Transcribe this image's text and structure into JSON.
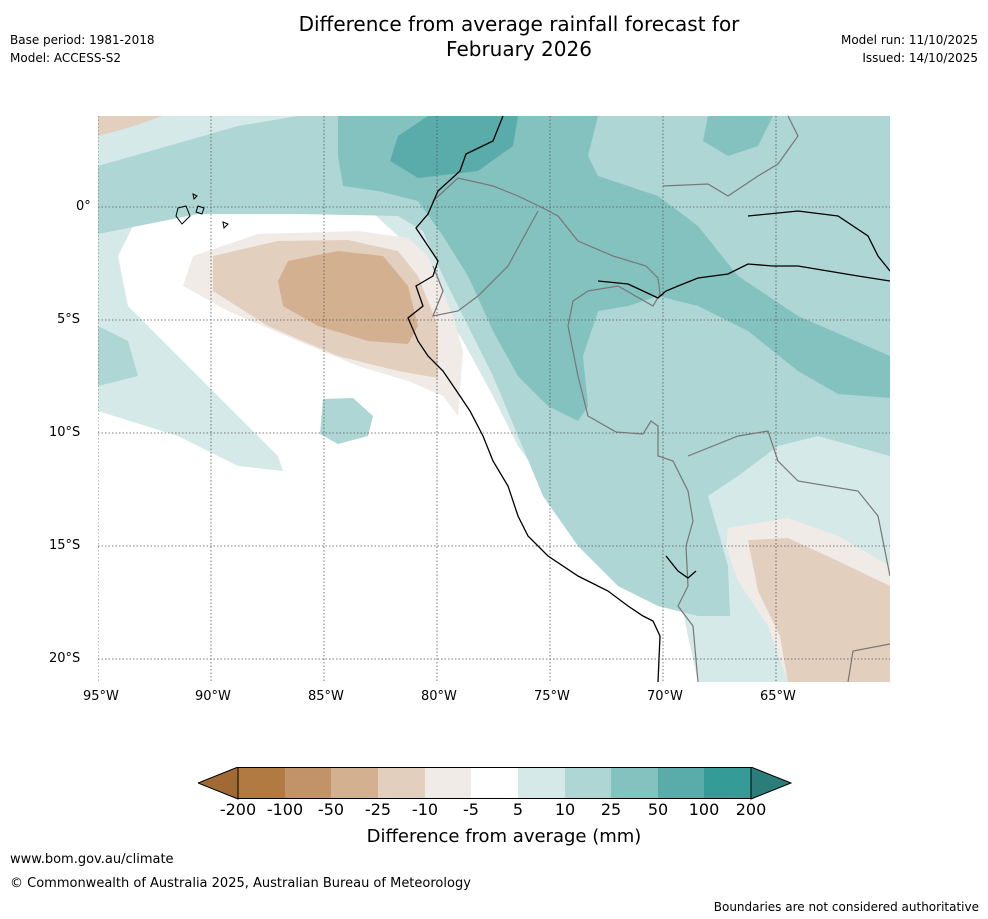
{
  "header": {
    "title_line1": "Difference from average rainfall forecast for",
    "title_line2": "February 2026",
    "base_period": "Base period: 1981-2018",
    "model": "Model: ACCESS-S2",
    "model_run": "Model run: 11/10/2025",
    "issued": "Issued: 14/10/2025"
  },
  "map": {
    "lon_labels": [
      "95°W",
      "90°W",
      "85°W",
      "80°W",
      "75°W",
      "70°W",
      "65°W"
    ],
    "lat_labels": [
      "0°",
      "5°S",
      "10°S",
      "15°S",
      "20°S"
    ],
    "colors": {
      "minus200": "#a16a34",
      "minus100": "#b07a42",
      "minus50": "#c29369",
      "minus25": "#d3b090",
      "minus10": "#e3cfbe",
      "minus5": "#f0ebe6",
      "zero": "#ffffff",
      "plus5": "#d5e9e8",
      "plus10": "#add6d5",
      "plus25": "#84c2c0",
      "plus50": "#5aacab",
      "plus100": "#349b97",
      "plus200": "#2a7d79"
    }
  },
  "legend": {
    "labels": [
      "-200",
      "-100",
      "-50",
      "-25",
      "-10",
      "-5",
      "5",
      "10",
      "25",
      "50",
      "100",
      "200"
    ],
    "title": "Difference from average (mm)"
  },
  "footer": {
    "url": "www.bom.gov.au/climate",
    "copyright": "© Commonwealth of Australia 2025, Australian Bureau of Meteorology",
    "disclaimer": "Boundaries are not considered authoritative"
  }
}
